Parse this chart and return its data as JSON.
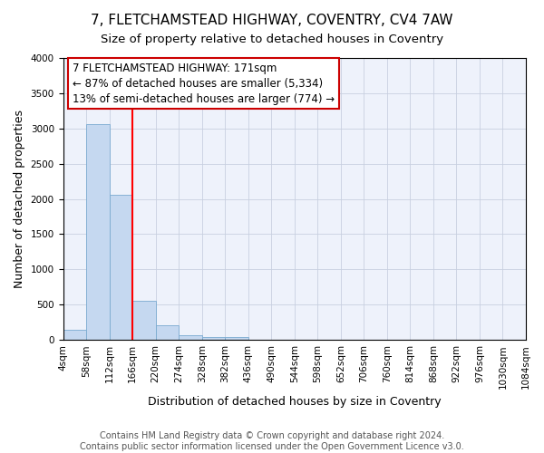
{
  "title": "7, FLETCHAMSTEAD HIGHWAY, COVENTRY, CV4 7AW",
  "subtitle": "Size of property relative to detached houses in Coventry",
  "xlabel": "Distribution of detached houses by size in Coventry",
  "ylabel": "Number of detached properties",
  "footer_line1": "Contains HM Land Registry data © Crown copyright and database right 2024.",
  "footer_line2": "Contains public sector information licensed under the Open Government Licence v3.0.",
  "annotation_line1": "7 FLETCHAMSTEAD HIGHWAY: 171sqm",
  "annotation_line2": "← 87% of detached houses are smaller (5,334)",
  "annotation_line3": "13% of semi-detached houses are larger (774) →",
  "bin_edges": [
    4,
    58,
    112,
    166,
    220,
    274,
    328,
    382,
    436,
    490,
    544,
    598,
    652,
    706,
    760,
    814,
    868,
    922,
    976,
    1030,
    1084
  ],
  "bin_labels": [
    "4sqm",
    "58sqm",
    "112sqm",
    "166sqm",
    "220sqm",
    "274sqm",
    "328sqm",
    "382sqm",
    "436sqm",
    "490sqm",
    "544sqm",
    "598sqm",
    "652sqm",
    "706sqm",
    "760sqm",
    "814sqm",
    "868sqm",
    "922sqm",
    "976sqm",
    "1030sqm",
    "1084sqm"
  ],
  "bar_heights": [
    150,
    3060,
    2060,
    560,
    205,
    65,
    40,
    35,
    0,
    0,
    0,
    0,
    0,
    0,
    0,
    0,
    0,
    0,
    0,
    0
  ],
  "bar_color": "#c5d8f0",
  "bar_edge_color": "#7aaad0",
  "red_line_x": 166,
  "ylim": [
    0,
    4000
  ],
  "yticks": [
    0,
    500,
    1000,
    1500,
    2000,
    2500,
    3000,
    3500,
    4000
  ],
  "bg_color": "#eef2fb",
  "grid_color": "#c8d0e0",
  "annotation_border_color": "#cc0000",
  "title_fontsize": 11,
  "subtitle_fontsize": 9.5,
  "axis_label_fontsize": 9,
  "tick_fontsize": 7.5,
  "annotation_fontsize": 8.5,
  "footer_fontsize": 7
}
